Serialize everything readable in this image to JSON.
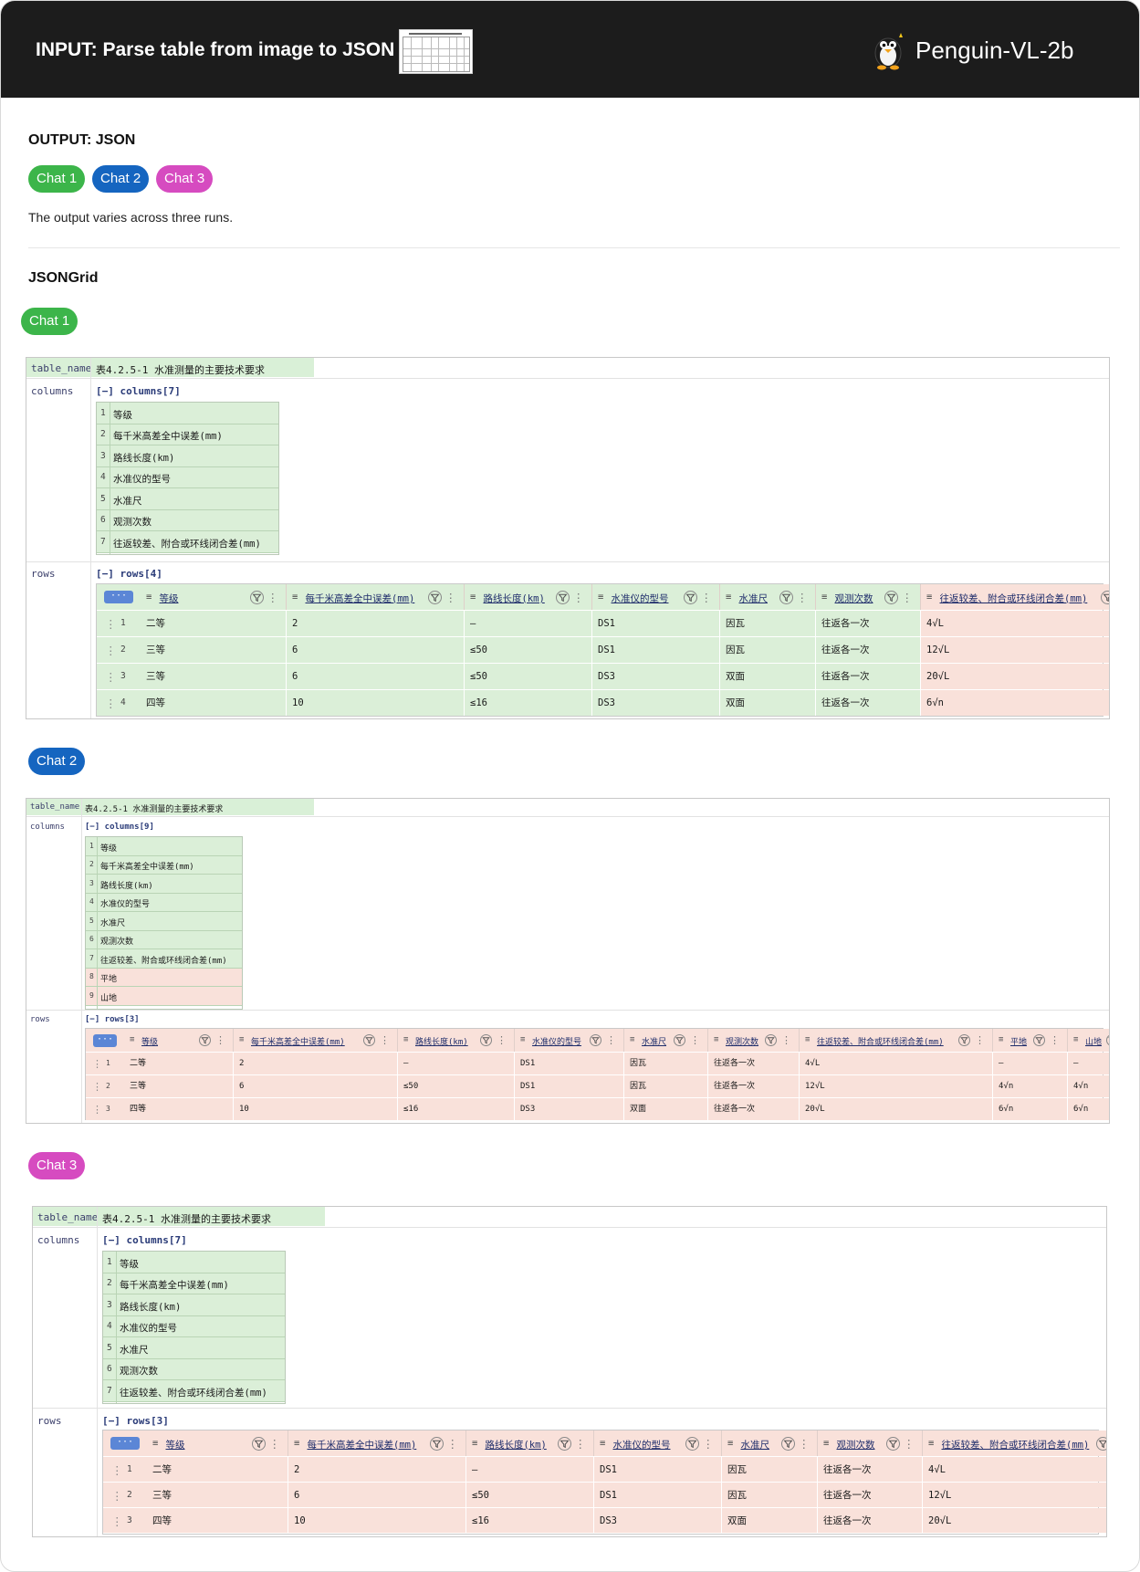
{
  "header": {
    "input_label": "INPUT: Parse table from image to JSON",
    "model_name": "Penguin-VL-2b"
  },
  "output": {
    "label": "OUTPUT: JSON",
    "chips": [
      "Chat 1",
      "Chat 2",
      "Chat 3"
    ],
    "note": "The output varies across three runs.",
    "grid_label": "JSONGrid"
  },
  "colors": {
    "chat1": "#3cb54a",
    "chat2": "#1565c0",
    "chat3": "#d64bc0",
    "match": "#dbefd8",
    "mismatch": "#f9e1da"
  },
  "runs": [
    {
      "chip": "Chat 1",
      "table_name_key": "table_name",
      "table_name": "表4.2.5-1 水准测量的主要技术要求",
      "columns_key": "columns",
      "columns_tag": "[−] columns[7]",
      "columns": [
        {
          "n": "1",
          "t": "等级",
          "ok": true
        },
        {
          "n": "2",
          "t": "每千米高差全中误差(mm)",
          "ok": true
        },
        {
          "n": "3",
          "t": "路线长度(km)",
          "ok": true
        },
        {
          "n": "4",
          "t": "水准仪的型号",
          "ok": true
        },
        {
          "n": "5",
          "t": "水准尺",
          "ok": true
        },
        {
          "n": "6",
          "t": "观测次数",
          "ok": true
        },
        {
          "n": "7",
          "t": "往返较差、附合或环线闭合差(mm)",
          "ok": true
        }
      ],
      "rows_key": "rows",
      "rows_tag": "[−] rows[4]",
      "headers": [
        "等级",
        "每千米高差全中误差(mm)",
        "路线长度(km)",
        "水准仪的型号",
        "水准尺",
        "观测次数",
        "往返较差、附合或环线闭合差(mm)"
      ],
      "header_ok": [
        true,
        true,
        true,
        true,
        true,
        true,
        false
      ],
      "rows": [
        {
          "n": "1",
          "cells": [
            "二等",
            "2",
            "—",
            "DS1",
            "因瓦",
            "往返各一次",
            "4√L"
          ]
        },
        {
          "n": "2",
          "cells": [
            "三等",
            "6",
            "≤50",
            "DS1",
            "因瓦",
            "往返各一次",
            "12√L"
          ]
        },
        {
          "n": "3",
          "cells": [
            "三等",
            "6",
            "≤50",
            "DS3",
            "双面",
            "往返各一次",
            "20√L"
          ]
        },
        {
          "n": "4",
          "cells": [
            "四等",
            "10",
            "≤16",
            "DS3",
            "双面",
            "往返各一次",
            "6√n"
          ]
        }
      ]
    },
    {
      "chip": "Chat 2",
      "table_name_key": "table_name",
      "table_name": "表4.2.5-1 水准测量的主要技术要求",
      "columns_key": "columns",
      "columns_tag": "[−] columns[9]",
      "columns": [
        {
          "n": "1",
          "t": "等级",
          "ok": true
        },
        {
          "n": "2",
          "t": "每千米高差全中误差(mm)",
          "ok": true
        },
        {
          "n": "3",
          "t": "路线长度(km)",
          "ok": true
        },
        {
          "n": "4",
          "t": "水准仪的型号",
          "ok": true
        },
        {
          "n": "5",
          "t": "水准尺",
          "ok": true
        },
        {
          "n": "6",
          "t": "观测次数",
          "ok": true
        },
        {
          "n": "7",
          "t": "往返较差、附合或环线闭合差(mm)",
          "ok": true
        },
        {
          "n": "8",
          "t": "平地",
          "ok": false
        },
        {
          "n": "9",
          "t": "山地",
          "ok": false
        }
      ],
      "rows_key": "rows",
      "rows_tag": "[−] rows[3]",
      "headers": [
        "等级",
        "每千米高差全中误差(mm)",
        "路线长度(km)",
        "水准仪的型号",
        "水准尺",
        "观测次数",
        "往返较差、附合或环线闭合差(mm)",
        "平地",
        "山地"
      ],
      "header_ok": [
        false,
        false,
        false,
        false,
        false,
        false,
        false,
        false,
        false
      ],
      "rows": [
        {
          "n": "1",
          "cells": [
            "二等",
            "2",
            "—",
            "DS1",
            "因瓦",
            "往返各一次",
            "4√L",
            "—",
            "—"
          ]
        },
        {
          "n": "2",
          "cells": [
            "三等",
            "6",
            "≤50",
            "DS1",
            "因瓦",
            "往返各一次",
            "12√L",
            "4√n",
            "4√n"
          ]
        },
        {
          "n": "3",
          "cells": [
            "四等",
            "10",
            "≤16",
            "DS3",
            "双面",
            "往返各一次",
            "20√L",
            "6√n",
            "6√n"
          ]
        }
      ]
    },
    {
      "chip": "Chat 3",
      "table_name_key": "table_name",
      "table_name": "表4.2.5-1 水准测量的主要技术要求",
      "columns_key": "columns",
      "columns_tag": "[−] columns[7]",
      "columns": [
        {
          "n": "1",
          "t": "等级",
          "ok": true
        },
        {
          "n": "2",
          "t": "每千米高差全中误差(mm)",
          "ok": true
        },
        {
          "n": "3",
          "t": "路线长度(km)",
          "ok": true
        },
        {
          "n": "4",
          "t": "水准仪的型号",
          "ok": true
        },
        {
          "n": "5",
          "t": "水准尺",
          "ok": true
        },
        {
          "n": "6",
          "t": "观测次数",
          "ok": true
        },
        {
          "n": "7",
          "t": "往返较差、附合或环线闭合差(mm)",
          "ok": true
        }
      ],
      "rows_key": "rows",
      "rows_tag": "[−] rows[3]",
      "headers": [
        "等级",
        "每千米高差全中误差(mm)",
        "路线长度(km)",
        "水准仪的型号",
        "水准尺",
        "观测次数",
        "往返较差、附合或环线闭合差(mm)"
      ],
      "header_ok": [
        false,
        false,
        false,
        false,
        false,
        false,
        false
      ],
      "rows": [
        {
          "n": "1",
          "cells": [
            "二等",
            "2",
            "—",
            "DS1",
            "因瓦",
            "往返各一次",
            "4√L"
          ]
        },
        {
          "n": "2",
          "cells": [
            "三等",
            "6",
            "≤50",
            "DS1",
            "因瓦",
            "往返各一次",
            "12√L"
          ]
        },
        {
          "n": "3",
          "cells": [
            "四等",
            "10",
            "≤16",
            "DS3",
            "双面",
            "往返各一次",
            "20√L"
          ]
        }
      ]
    }
  ]
}
